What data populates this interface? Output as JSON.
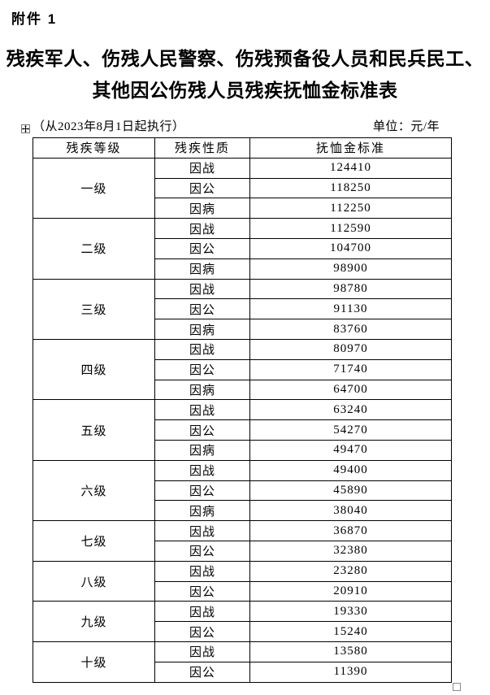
{
  "page": {
    "attachment_label": "附件 1",
    "title_line1": "残疾军人、伤残人民警察、伤残预备役人员和民兵民工、",
    "title_line2": "其他因公伤残人员残疾抚恤金标准表",
    "effective_note": "（从2023年8月1日起执行）",
    "unit_label": "单位：元/年"
  },
  "table": {
    "headers": [
      "残疾等级",
      "残疾性质",
      "抚恤金标准"
    ],
    "groups": [
      {
        "level": "一级",
        "rows": [
          [
            "因战",
            "124410"
          ],
          [
            "因公",
            "118250"
          ],
          [
            "因病",
            "112250"
          ]
        ]
      },
      {
        "level": "二级",
        "rows": [
          [
            "因战",
            "112590"
          ],
          [
            "因公",
            "104700"
          ],
          [
            "因病",
            "98900"
          ]
        ]
      },
      {
        "level": "三级",
        "rows": [
          [
            "因战",
            "98780"
          ],
          [
            "因公",
            "91130"
          ],
          [
            "因病",
            "83760"
          ]
        ]
      },
      {
        "level": "四级",
        "rows": [
          [
            "因战",
            "80970"
          ],
          [
            "因公",
            "71740"
          ],
          [
            "因病",
            "64700"
          ]
        ]
      },
      {
        "level": "五级",
        "rows": [
          [
            "因战",
            "63240"
          ],
          [
            "因公",
            "54270"
          ],
          [
            "因病",
            "49470"
          ]
        ]
      },
      {
        "level": "六级",
        "rows": [
          [
            "因战",
            "49400"
          ],
          [
            "因公",
            "45890"
          ],
          [
            "因病",
            "38040"
          ]
        ]
      },
      {
        "level": "七级",
        "rows": [
          [
            "因战",
            "36870"
          ],
          [
            "因公",
            "32380"
          ]
        ]
      },
      {
        "level": "八级",
        "rows": [
          [
            "因战",
            "23280"
          ],
          [
            "因公",
            "20910"
          ]
        ]
      },
      {
        "level": "九级",
        "rows": [
          [
            "因战",
            "19330"
          ],
          [
            "因公",
            "15240"
          ]
        ]
      },
      {
        "level": "十级",
        "rows": [
          [
            "因战",
            "13580"
          ],
          [
            "因公",
            "11390"
          ]
        ]
      }
    ]
  },
  "icons": {
    "table_move_handle": "move-cross-arrows",
    "table_resize_handle": "small-square"
  },
  "colors": {
    "text": "#000000",
    "background": "#ffffff",
    "table_border": "#000000",
    "handle_border": "#7a7a7a"
  }
}
